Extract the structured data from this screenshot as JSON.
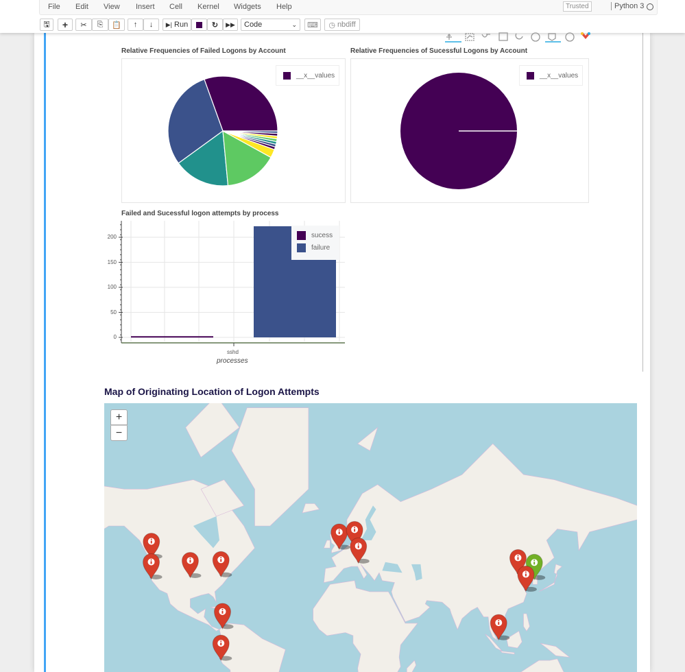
{
  "menu": {
    "items": [
      "File",
      "Edit",
      "View",
      "Insert",
      "Cell",
      "Kernel",
      "Widgets",
      "Help"
    ],
    "trusted": "Trusted",
    "kernel": "Python 3"
  },
  "toolbar": {
    "run_label": "Run",
    "cell_type": "Code",
    "nbdiff_label": "nbdiff",
    "icons": [
      "save-icon",
      "plus-icon",
      "cut-icon",
      "copy-icon",
      "paste-icon",
      "arrow-up-icon",
      "arrow-down-icon",
      "run-icon",
      "stop-icon",
      "restart-icon",
      "fast-forward-icon",
      "keyboard-icon",
      "clock-icon"
    ]
  },
  "bokeh_toolbar": {
    "icons": [
      "pan-icon",
      "box-zoom-icon",
      "wheel-zoom-icon",
      "box-select-icon",
      "reset-icon",
      "help-icon",
      "hover-icon",
      "help-icon",
      "bokeh-logo-icon"
    ]
  },
  "colors": {
    "viridis": [
      "#440154",
      "#3b528b",
      "#21918c",
      "#5ec962",
      "#fde725"
    ],
    "success": "#440154",
    "failure": "#3b528b",
    "pin_red": "#d63e2a",
    "pin_green": "#72b026",
    "accent": "#42a5f5"
  },
  "chart_data": [
    {
      "type": "pie",
      "title": "Relative Frequencies of Failed Logons by Account",
      "legend": [
        "__x__values"
      ],
      "values": [
        0.305,
        0.295,
        0.165,
        0.155,
        0.025,
        0.008,
        0.008,
        0.008,
        0.008,
        0.008,
        0.008,
        0.007
      ]
    },
    {
      "type": "pie",
      "title": "Relative Frequencies of Sucessful Logons by Account",
      "legend": [
        "__x__values"
      ],
      "values": [
        1.0
      ]
    },
    {
      "type": "bar",
      "title": "Failed and Sucessful logon attempts by process",
      "categories": [
        "sshd"
      ],
      "xlabel": "processes",
      "ylabel": "",
      "series": [
        {
          "name": "sucess",
          "values": [
            1
          ]
        },
        {
          "name": "failure",
          "values": [
            222
          ]
        }
      ],
      "yticks": [
        "0",
        "50",
        "100",
        "150",
        "200"
      ],
      "ylim": [
        -8,
        230
      ],
      "grid": true,
      "legend": "top-right"
    }
  ],
  "map": {
    "title": "Map of Originating Location of Logon Attempts",
    "zoom_in": "+",
    "zoom_out": "−",
    "markers": [
      {
        "lat": 47.6,
        "lon": -122.3,
        "color": "red"
      },
      {
        "lat": 37.8,
        "lon": -122.4,
        "color": "red"
      },
      {
        "lat": 38.5,
        "lon": -97.0,
        "color": "red"
      },
      {
        "lat": 38.9,
        "lon": -77.0,
        "color": "red"
      },
      {
        "lat": 8.5,
        "lon": -76.0,
        "color": "red"
      },
      {
        "lat": -12.0,
        "lon": -77.0,
        "color": "red"
      },
      {
        "lat": 51.5,
        "lon": 0.0,
        "color": "red"
      },
      {
        "lat": 52.5,
        "lon": 10.0,
        "color": "red"
      },
      {
        "lat": 45.5,
        "lon": 12.5,
        "color": "red"
      },
      {
        "lat": 39.9,
        "lon": 116.4,
        "color": "red"
      },
      {
        "lat": 37.5,
        "lon": 127.0,
        "color": "green"
      },
      {
        "lat": 31.2,
        "lon": 121.5,
        "color": "red"
      },
      {
        "lat": 1.3,
        "lon": 103.8,
        "color": "red"
      }
    ]
  }
}
